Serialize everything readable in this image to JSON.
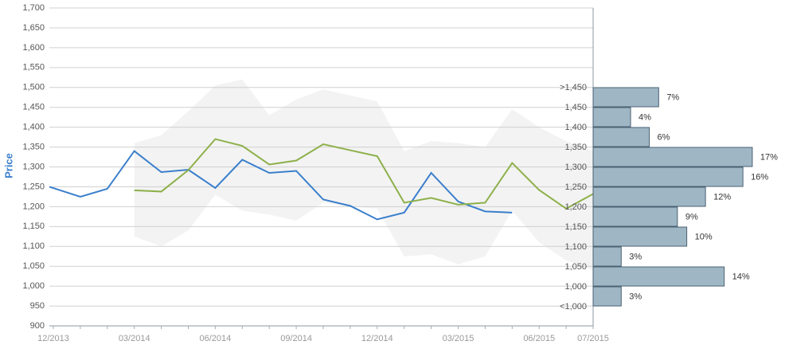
{
  "chart_data": [
    {
      "type": "line",
      "y_label": "Price",
      "categories": [
        "12/2013",
        null,
        null,
        "03/2014",
        null,
        null,
        "06/2014",
        null,
        null,
        "09/2014",
        null,
        null,
        "12/2014",
        null,
        null,
        "03/2015",
        null,
        null,
        "06/2015",
        null,
        "07/2015"
      ],
      "ylim": [
        900,
        1700
      ],
      "yticks": [
        900,
        950,
        {
          "value": 1000,
          "label": "1,000"
        },
        {
          "value": 1050,
          "label": "1,050"
        },
        {
          "value": 1100,
          "label": "1,100"
        },
        {
          "value": 1150,
          "label": "1,150"
        },
        {
          "value": 1200,
          "label": "1,200"
        },
        {
          "value": 1250,
          "label": "1,250"
        },
        {
          "value": 1300,
          "label": "1,300"
        },
        {
          "value": 1350,
          "label": "1,350"
        },
        {
          "value": 1400,
          "label": "1,400"
        },
        {
          "value": 1450,
          "label": "1,450"
        },
        {
          "value": 1500,
          "label": "1,500"
        },
        {
          "value": 1550,
          "label": "1,550"
        },
        {
          "value": 1600,
          "label": "1,600"
        },
        {
          "value": 1650,
          "label": "1,650"
        },
        {
          "value": 1700,
          "label": "1,700"
        }
      ],
      "grid": true,
      "band": {
        "color": "#f3f3f3",
        "upper": [
          null,
          null,
          null,
          1360,
          1380,
          1440,
          1505,
          1520,
          1430,
          1470,
          1495,
          1480,
          1465,
          1340,
          1365,
          1360,
          1350,
          1445,
          1400,
          1365,
          1340
        ],
        "lower": [
          null,
          null,
          null,
          1125,
          1100,
          1140,
          1230,
          1190,
          1180,
          1165,
          1210,
          1200,
          1195,
          1075,
          1080,
          1055,
          1075,
          1190,
          1110,
          1065,
          1040
        ]
      },
      "series": [
        {
          "color": "#3a7fcc",
          "values": [
            1250,
            1225,
            1245,
            1340,
            1287,
            1293,
            1247,
            1318,
            1285,
            1290,
            1218,
            1202,
            1168,
            1185,
            1285,
            1213,
            1188,
            1185,
            null,
            null,
            null
          ]
        },
        {
          "color": "#8db04a",
          "values": [
            null,
            null,
            null,
            1241,
            1238,
            1292,
            1370,
            1353,
            1306,
            1316,
            1357,
            1342,
            1327,
            1210,
            1222,
            1205,
            1210,
            1310,
            1242,
            1195,
            1232
          ]
        }
      ]
    },
    {
      "type": "hbar_histogram",
      "color": "#9fb6c5",
      "bins": [
        ">1,450",
        "1,450",
        "1,400",
        "1,350",
        "1,300",
        "1,250",
        "1,200",
        "1,150",
        "1,100",
        "1,050",
        "1,000",
        "<1,000"
      ],
      "values": [
        7,
        4,
        6,
        17,
        16,
        12,
        9,
        10,
        3,
        14,
        3
      ],
      "value_labels": [
        "7%",
        "4%",
        "6%",
        "17%",
        "16%",
        "12%",
        "9%",
        "10%",
        "3%",
        "14%",
        "3%"
      ]
    }
  ]
}
